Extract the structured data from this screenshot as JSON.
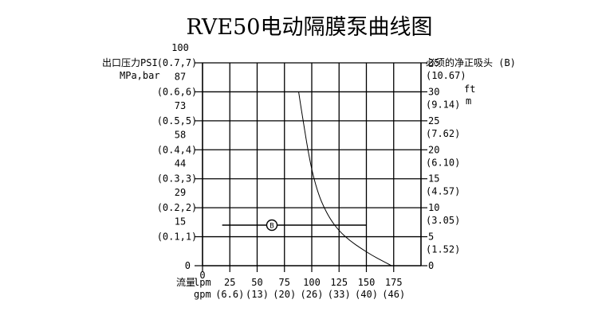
{
  "chart_data": {
    "type": "line",
    "title": "RVE50电动隔膜泵曲线图",
    "left_axis": {
      "label_line1": "出口压力PSI",
      "label_line2": "MPa,bar",
      "ticks": [
        {
          "psi": "100",
          "mpa": "(0.7,7)"
        },
        {
          "psi": "87",
          "mpa": "(0.6,6)"
        },
        {
          "psi": "73",
          "mpa": "(0.5,5)"
        },
        {
          "psi": "58",
          "mpa": "(0.4,4)"
        },
        {
          "psi": "44",
          "mpa": "(0.3,3)"
        },
        {
          "psi": "29",
          "mpa": "(0.2,2)"
        },
        {
          "psi": "15",
          "mpa": "(0.1,1)"
        },
        {
          "psi": "0",
          "mpa": ""
        }
      ],
      "ylim": [
        0,
        7
      ]
    },
    "right_axis": {
      "label": "必须的净正吸头 (B)",
      "ticks": [
        {
          "ft": "35",
          "m": "(10.67)"
        },
        {
          "ft": "30",
          "m": "(9.14)"
        },
        {
          "ft": "25",
          "m": "(7.62)"
        },
        {
          "ft": "20",
          "m": "(6.10)"
        },
        {
          "ft": "15",
          "m": "(4.57)"
        },
        {
          "ft": "10",
          "m": "(3.05)"
        },
        {
          "ft": "5",
          "m": "(1.52)"
        },
        {
          "ft": "0",
          "m": ""
        }
      ],
      "unit_ft": "ft",
      "unit_m": "m",
      "ylim": [
        0,
        35
      ]
    },
    "x_axis": {
      "label": "流量",
      "unit_lpm": "lpm",
      "unit_gpm": "gpm",
      "lpm_ticks": [
        "0",
        "25",
        "50",
        "75",
        "100",
        "125",
        "150",
        "175"
      ],
      "gpm_ticks": [
        "(6.6)",
        "(13)",
        "(20)",
        "(26)",
        "(33)",
        "(40)",
        "(46)"
      ],
      "xlim": [
        0,
        200
      ]
    },
    "series": [
      {
        "marker": "B",
        "axis": "right",
        "x": [
          88,
          90,
          93,
          96,
          100,
          105,
          110,
          117,
          125,
          135,
          145,
          155,
          165,
          173
        ],
        "y": [
          30,
          27.5,
          24,
          20.5,
          16.5,
          13,
          10.5,
          8,
          6,
          4.3,
          3,
          1.8,
          0.8,
          0
        ]
      },
      {
        "marker": "B",
        "axis": "left",
        "x": [
          18,
          150
        ],
        "y": [
          1.4,
          1.4
        ]
      }
    ],
    "grid": true
  }
}
